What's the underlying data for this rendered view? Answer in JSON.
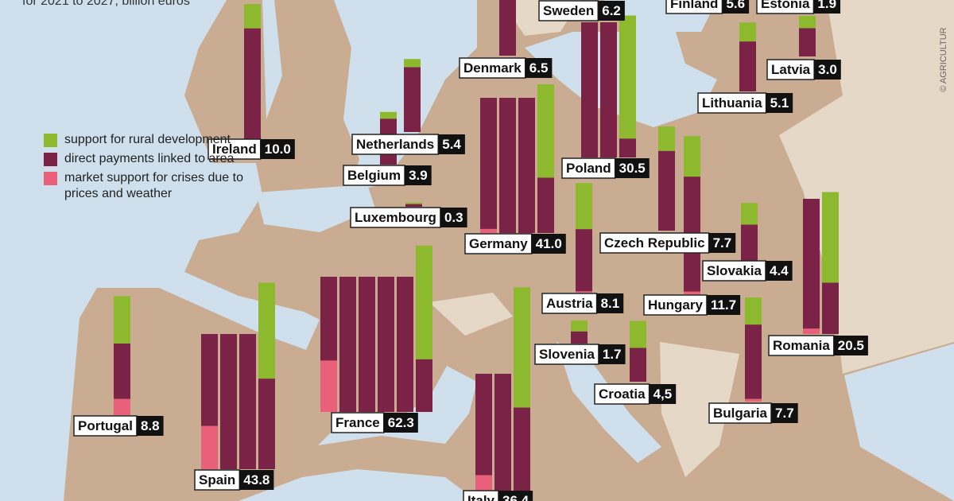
{
  "subtitle": "for 2021 to 2027, billion euros",
  "credit": "© AGRICULTUR",
  "chart_data": {
    "type": "map-bar",
    "categories": [
      "Ireland",
      "Netherlands",
      "Belgium",
      "Luxembourg",
      "Germany",
      "Denmark",
      "Sweden",
      "Finland",
      "Estonia",
      "Latvia",
      "Lithuania",
      "Poland",
      "Czech Republic",
      "Slovakia",
      "Austria",
      "Hungary",
      "Romania",
      "Slovenia",
      "Croatia",
      "Bulgaria",
      "France",
      "Portugal",
      "Spain",
      "Italy"
    ],
    "values": [
      10.0,
      5.4,
      3.9,
      0.3,
      41.0,
      6.5,
      6.2,
      5.6,
      1.9,
      3.0,
      5.1,
      30.5,
      7.7,
      4.4,
      8.1,
      11.7,
      20.5,
      1.7,
      4.5,
      7.7,
      62.3,
      8.8,
      43.8,
      36.4
    ],
    "value_labels": [
      "10.0",
      "5.4",
      "3.9",
      "0.3",
      "41.0",
      "6.5",
      "6.2",
      "5.6",
      "1.9",
      "3.0",
      "5.1",
      "30.5",
      "7.7",
      "4.4",
      "8.1",
      "11.7",
      "20.5",
      "1.7",
      "4,5",
      "7.7",
      "62.3",
      "8.8",
      "43.8",
      "36.4"
    ],
    "series": [
      {
        "name": "support for rural development",
        "color": "#8db92e",
        "values": [
          1.8,
          0.6,
          0.5,
          0.1,
          6.9,
          0.9,
          1.8,
          2.4,
          0.6,
          0.9,
          1.4,
          9.1,
          1.8,
          1.6,
          3.4,
          3.0,
          6.7,
          0.8,
          2.0,
          2.0,
          8.4,
          3.5,
          7.1,
          8.9
        ]
      },
      {
        "name": "direct payments linked to area",
        "color": "#7b2347",
        "values": [
          8.2,
          4.8,
          3.4,
          0.2,
          33.8,
          5.6,
          4.4,
          3.2,
          1.3,
          2.1,
          3.7,
          21.4,
          5.9,
          2.8,
          4.6,
          8.5,
          13.4,
          0.9,
          2.5,
          5.5,
          50.1,
          4.1,
          33.5,
          25.0
        ]
      },
      {
        "name": "market support for crises due to prices and weather",
        "color": "#e8607a",
        "values": [
          0,
          0,
          0,
          0,
          0.3,
          0,
          0,
          0,
          0,
          0,
          0,
          0,
          0,
          0,
          0.1,
          0.2,
          0.4,
          0,
          0,
          0.2,
          3.8,
          1.2,
          3.2,
          2.5
        ]
      }
    ]
  }
}
